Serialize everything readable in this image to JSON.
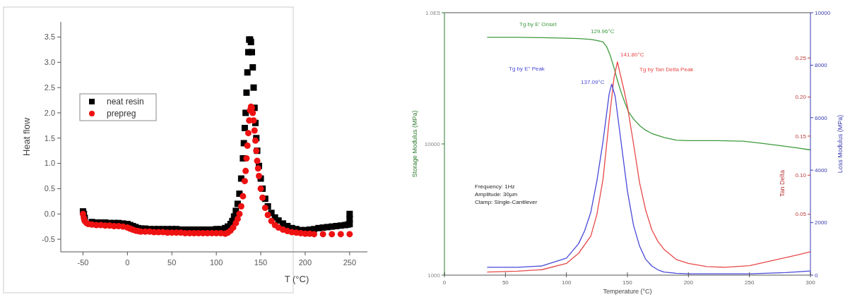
{
  "chart_data": [
    {
      "type": "scatter",
      "xlabel": "T (°C)",
      "ylabel": "Heat flow",
      "xlim": [
        -75,
        270
      ],
      "xticks": [
        -50,
        0,
        50,
        100,
        150,
        200,
        250
      ],
      "ylim": [
        -0.75,
        3.8
      ],
      "yticks": [
        -0.5,
        {
          "value": 0,
          "label": "0.0"
        },
        0.5,
        {
          "value": 1,
          "label": "1.0"
        },
        1.5,
        {
          "value": 2,
          "label": "2.0"
        },
        2.5,
        {
          "value": 3,
          "label": "3.0"
        },
        3.5
      ],
      "legend": "top left",
      "grid": false,
      "series": [
        {
          "name": "neat resin",
          "color": "#000000",
          "marker": "square",
          "x": [
            -50,
            -49,
            -48,
            -40,
            -35,
            -30,
            -25,
            -20,
            -15,
            -10,
            -5,
            0,
            3,
            6,
            9,
            12,
            15,
            20,
            25,
            30,
            35,
            40,
            45,
            50,
            55,
            60,
            65,
            70,
            75,
            80,
            85,
            90,
            95,
            100,
            105,
            110,
            113,
            116,
            118,
            120,
            122,
            124,
            126,
            128,
            130,
            131,
            132,
            133,
            134,
            135,
            136,
            137,
            138,
            139,
            140,
            141,
            142,
            143,
            144,
            145,
            146,
            148,
            150,
            152,
            155,
            158,
            162,
            166,
            170,
            175,
            180,
            185,
            190,
            195,
            200,
            205,
            210,
            215,
            220,
            225,
            230,
            235,
            240,
            245,
            248,
            250,
            250,
            250
          ],
          "values": [
            0.05,
            0.0,
            -0.08,
            -0.16,
            -0.17,
            -0.17,
            -0.17,
            -0.18,
            -0.18,
            -0.18,
            -0.19,
            -0.2,
            -0.22,
            -0.24,
            -0.26,
            -0.28,
            -0.29,
            -0.29,
            -0.3,
            -0.3,
            -0.3,
            -0.3,
            -0.3,
            -0.3,
            -0.3,
            -0.31,
            -0.31,
            -0.31,
            -0.31,
            -0.31,
            -0.31,
            -0.31,
            -0.31,
            -0.3,
            -0.3,
            -0.28,
            -0.25,
            -0.2,
            -0.14,
            -0.05,
            0.06,
            0.2,
            0.4,
            0.7,
            1.1,
            1.4,
            1.7,
            2.0,
            2.4,
            2.8,
            3.2,
            3.45,
            3.45,
            3.4,
            3.2,
            2.9,
            2.5,
            2.1,
            1.8,
            1.5,
            1.25,
            0.95,
            0.7,
            0.5,
            0.3,
            0.15,
            0.02,
            -0.07,
            -0.13,
            -0.19,
            -0.24,
            -0.28,
            -0.3,
            -0.32,
            -0.32,
            -0.31,
            -0.3,
            -0.28,
            -0.27,
            -0.26,
            -0.25,
            -0.24,
            -0.23,
            -0.22,
            -0.21,
            -0.2,
            -0.1,
            0.0
          ]
        },
        {
          "name": "prepreg",
          "color": "#ee1111",
          "marker": "circle",
          "x": [
            -50,
            -49,
            -48,
            -46,
            -44,
            -40,
            -35,
            -30,
            -25,
            -20,
            -15,
            -10,
            -5,
            0,
            3,
            6,
            9,
            12,
            15,
            20,
            25,
            30,
            35,
            40,
            45,
            50,
            55,
            60,
            65,
            70,
            75,
            80,
            85,
            90,
            95,
            100,
            105,
            110,
            113,
            116,
            119,
            122,
            124,
            126,
            128,
            130,
            132,
            133,
            134,
            135,
            136,
            137,
            138,
            139,
            140,
            141,
            142,
            143,
            144,
            145,
            146,
            147,
            148,
            150,
            152,
            155,
            158,
            162,
            166,
            170,
            175,
            180,
            185,
            190,
            195,
            200,
            205,
            210,
            220,
            230,
            240,
            250
          ],
          "values": [
            0.0,
            -0.08,
            -0.14,
            -0.18,
            -0.2,
            -0.21,
            -0.22,
            -0.22,
            -0.23,
            -0.23,
            -0.24,
            -0.24,
            -0.25,
            -0.27,
            -0.29,
            -0.31,
            -0.33,
            -0.34,
            -0.35,
            -0.35,
            -0.35,
            -0.36,
            -0.36,
            -0.36,
            -0.37,
            -0.37,
            -0.37,
            -0.37,
            -0.38,
            -0.38,
            -0.38,
            -0.38,
            -0.38,
            -0.38,
            -0.38,
            -0.38,
            -0.38,
            -0.39,
            -0.37,
            -0.33,
            -0.27,
            -0.18,
            -0.1,
            0.0,
            0.15,
            0.35,
            0.65,
            0.85,
            1.1,
            1.35,
            1.6,
            1.85,
            2.05,
            2.12,
            2.1,
            2.0,
            1.85,
            1.65,
            1.45,
            1.25,
            1.05,
            0.9,
            0.75,
            0.5,
            0.32,
            0.12,
            -0.02,
            -0.14,
            -0.22,
            -0.27,
            -0.31,
            -0.34,
            -0.36,
            -0.37,
            -0.38,
            -0.39,
            -0.39,
            -0.4,
            -0.4,
            -0.4,
            -0.4,
            -0.4
          ]
        }
      ]
    },
    {
      "type": "line",
      "xlabel": "Temperature (°C)",
      "ylabel": "Storage Modulus (MPa)",
      "y2label": "Tan Delta",
      "y3label": "Loss Modulus (MPa)",
      "xlim": [
        0,
        300
      ],
      "xticks": [
        0,
        50,
        100,
        150,
        200,
        250,
        300
      ],
      "log": "y",
      "ylim": [
        1000,
        100000
      ],
      "yticks": [
        1000,
        10000,
        {
          "value": 100000,
          "label": "1.0E5"
        }
      ],
      "y2lim": [
        -0.028,
        0.308
      ],
      "y2ticks": [
        0.05,
        {
          "value": 0.1,
          "label": "0.10"
        },
        0.15,
        {
          "value": 0.2,
          "label": "0.20"
        },
        0.25
      ],
      "y3lim": [
        0,
        10000
      ],
      "y3ticks": [
        0,
        2000,
        4000,
        6000,
        8000,
        10000
      ],
      "grid": false,
      "marker": "none",
      "line_style": "solid",
      "annotations": [
        "Tg by E' Onset",
        "129.96°C",
        "141.80°C",
        "Tg by Tan Delta Peak",
        "Tg by E\" Peak",
        "137.09°C",
        "Frequency: 1Hz",
        "Amplitude: 30µm",
        "Clamp: Single-Cantilever"
      ],
      "series": [
        {
          "color": "#3c9a3c",
          "axis": "y",
          "x": [
            35,
            60,
            80,
            100,
            110,
            120,
            125,
            129.96,
            133,
            136,
            139,
            142,
            145,
            148,
            151,
            155,
            160,
            165,
            170,
            180,
            190,
            200,
            220,
            245,
            260,
            275,
            290,
            300
          ],
          "values": [
            65000,
            65000,
            64500,
            64000,
            63500,
            62500,
            61500,
            60000,
            55000,
            47000,
            38000,
            30000,
            24500,
            20500,
            17500,
            15500,
            13800,
            12700,
            12000,
            11200,
            10700,
            10600,
            10600,
            10500,
            10100,
            9700,
            9300,
            9000
          ]
        },
        {
          "color": "#e84848",
          "axis": "y2",
          "x": [
            35,
            60,
            80,
            100,
            110,
            120,
            125,
            130,
            135,
            139,
            141.8,
            144,
            147,
            150,
            155,
            160,
            165,
            170,
            175,
            180,
            190,
            200,
            215,
            230,
            250,
            270,
            290,
            300
          ],
          "values": [
            -0.024,
            -0.023,
            -0.021,
            -0.013,
            0.0,
            0.022,
            0.05,
            0.095,
            0.17,
            0.225,
            0.245,
            0.23,
            0.21,
            0.188,
            0.14,
            0.09,
            0.055,
            0.03,
            0.015,
            0.005,
            -0.008,
            -0.013,
            -0.017,
            -0.018,
            -0.016,
            -0.009,
            -0.002,
            0.002
          ]
        },
        {
          "color": "#4848d8",
          "axis": "y3",
          "x": [
            35,
            60,
            80,
            100,
            110,
            115,
            120,
            125,
            130,
            135,
            137.09,
            140,
            145,
            150,
            155,
            160,
            165,
            170,
            175,
            180,
            190,
            200,
            250,
            280,
            300
          ],
          "values": [
            300,
            300,
            350,
            650,
            1200,
            1700,
            2400,
            3600,
            5100,
            6900,
            7280,
            6800,
            5000,
            3200,
            1900,
            1100,
            600,
            350,
            200,
            120,
            70,
            50,
            50,
            100,
            160
          ]
        }
      ]
    }
  ]
}
